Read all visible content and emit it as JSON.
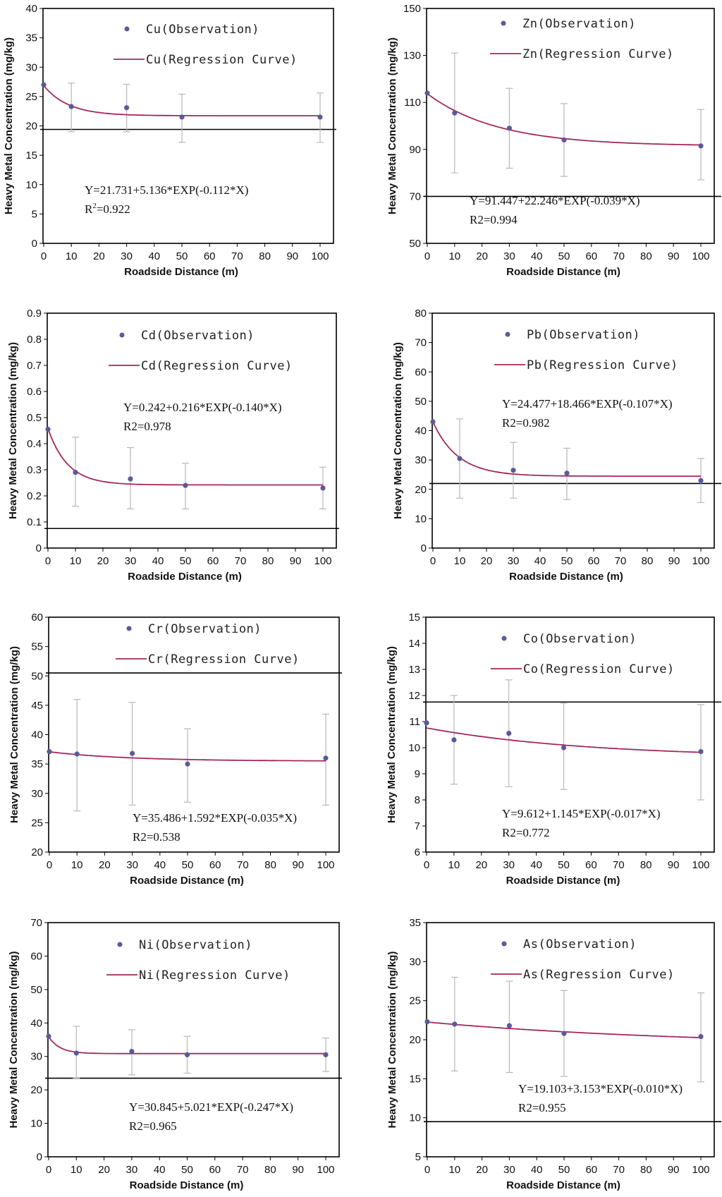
{
  "figure": {
    "x_label": "Roadside Distance (m)",
    "y_label": "Heavy Metal Concentration (mg/kg)"
  },
  "colors": {
    "point": "#5a5a9a",
    "curve": "#a4285a",
    "error_bar": "#b8b8b8",
    "reference_line": "#000000",
    "frame": "#000000"
  },
  "chart_data": [
    {
      "type": "scatter",
      "title": "Cu",
      "element": "Cu",
      "legend_observation": "Cu(Observation)",
      "legend_curve": "Cu(Regression Curve)",
      "xlabel": "Roadside Distance (m)",
      "ylabel": "Heavy Metal Concentration (mg/kg)",
      "xlim": [
        0,
        100
      ],
      "x_ticks": [
        0,
        10,
        20,
        30,
        40,
        50,
        60,
        70,
        80,
        90,
        100
      ],
      "ylim": [
        0,
        40
      ],
      "y_ticks": [
        0,
        5,
        10,
        15,
        20,
        25,
        30,
        35,
        40
      ],
      "x": [
        0,
        10,
        30,
        50,
        100
      ],
      "y": [
        27.0,
        23.3,
        23.1,
        21.5,
        21.5
      ],
      "error_low": [
        27.0,
        19.0,
        19.0,
        17.2,
        17.2
      ],
      "error_high": [
        27.0,
        27.3,
        27.1,
        25.4,
        25.6
      ],
      "regression": {
        "a": 21.731,
        "b": 5.136,
        "k": 0.112
      },
      "reference_line": 19.4,
      "equation": "Y=21.731+5.136*EXP(-0.112*X)",
      "r2_prefix": "R",
      "r2_sup": "2",
      "r2_value": "=0.922"
    },
    {
      "type": "scatter",
      "title": "Zn",
      "element": "Zn",
      "legend_observation": "Zn(Observation)",
      "legend_curve": "Zn(Regression Curve)",
      "xlabel": "Roadside Distance (m)",
      "ylabel": "Heavy Metal Concentration (mg/kg)",
      "xlim": [
        0,
        100
      ],
      "x_ticks": [
        0,
        10,
        20,
        30,
        40,
        50,
        60,
        70,
        80,
        90,
        100
      ],
      "ylim": [
        50,
        150
      ],
      "y_ticks": [
        50,
        70,
        90,
        110,
        130,
        150
      ],
      "x": [
        0,
        10,
        30,
        50,
        100
      ],
      "y": [
        114,
        105.5,
        99,
        94,
        91.5
      ],
      "error_low": [
        114,
        80,
        82,
        78.5,
        77
      ],
      "error_high": [
        114,
        131,
        116,
        109.5,
        107
      ],
      "regression": {
        "a": 91.447,
        "b": 22.246,
        "k": 0.039
      },
      "reference_line": 70,
      "equation": "Y=91.447+22.246*EXP(-0.039*X)",
      "r2_prefix": "R2",
      "r2_sup": "",
      "r2_value": "=0.994"
    },
    {
      "type": "scatter",
      "title": "Cd",
      "element": "Cd",
      "legend_observation": "Cd(Observation)",
      "legend_curve": "Cd(Regression Curve)",
      "xlabel": "Roadside Distance (m)",
      "ylabel": "Heavy Metal Concentration (mg/kg)",
      "xlim": [
        0,
        100
      ],
      "x_ticks": [
        0,
        10,
        20,
        30,
        40,
        50,
        60,
        70,
        80,
        90,
        100
      ],
      "ylim": [
        0,
        0.9
      ],
      "y_ticks": [
        0,
        0.1,
        0.2,
        0.3,
        0.4,
        0.5,
        0.6,
        0.7,
        0.8,
        0.9
      ],
      "x": [
        0,
        10,
        30,
        50,
        100
      ],
      "y": [
        0.455,
        0.29,
        0.265,
        0.24,
        0.23
      ],
      "error_low": [
        0.455,
        0.16,
        0.15,
        0.15,
        0.15
      ],
      "error_high": [
        0.455,
        0.425,
        0.385,
        0.325,
        0.31
      ],
      "regression": {
        "a": 0.242,
        "b": 0.216,
        "k": 0.14
      },
      "reference_line": 0.075,
      "equation": "Y=0.242+0.216*EXP(-0.140*X)",
      "r2_prefix": "R2",
      "r2_sup": "",
      "r2_value": "=0.978"
    },
    {
      "type": "scatter",
      "title": "Pb",
      "element": "Pb",
      "legend_observation": "Pb(Observation)",
      "legend_curve": "Pb(Regression Curve)",
      "xlabel": "Roadside Distance (m)",
      "ylabel": "Heavy Metal Concentration (mg/kg)",
      "xlim": [
        0,
        100
      ],
      "x_ticks": [
        0,
        10,
        20,
        30,
        40,
        50,
        60,
        70,
        80,
        90,
        100
      ],
      "ylim": [
        0,
        80
      ],
      "y_ticks": [
        0,
        10,
        20,
        30,
        40,
        50,
        60,
        70,
        80
      ],
      "x": [
        0,
        10,
        30,
        50,
        100
      ],
      "y": [
        43,
        30.5,
        26.5,
        25.5,
        23
      ],
      "error_low": [
        43,
        17,
        17,
        16.5,
        15.5
      ],
      "error_high": [
        43,
        44,
        36,
        34,
        30.5
      ],
      "regression": {
        "a": 24.477,
        "b": 18.466,
        "k": 0.107
      },
      "reference_line": 22,
      "equation": "Y=24.477+18.466*EXP(-0.107*X)",
      "r2_prefix": "R2",
      "r2_sup": "",
      "r2_value": "=0.982"
    },
    {
      "type": "scatter",
      "title": "Cr",
      "element": "Cr",
      "legend_observation": "Cr(Observation)",
      "legend_curve": "Cr(Regression Curve)",
      "xlabel": "Roadside Distance (m)",
      "ylabel": "Heavy Metal Concentration (mg/kg)",
      "xlim": [
        0,
        100
      ],
      "x_ticks": [
        0,
        10,
        20,
        30,
        40,
        50,
        60,
        70,
        80,
        90,
        100
      ],
      "ylim": [
        20,
        60
      ],
      "y_ticks": [
        20,
        25,
        30,
        35,
        40,
        45,
        50,
        55,
        60
      ],
      "x": [
        0,
        10,
        30,
        50,
        100
      ],
      "y": [
        37.1,
        36.7,
        36.8,
        35.0,
        36.0
      ],
      "error_low": [
        37.1,
        27,
        28,
        28.5,
        28
      ],
      "error_high": [
        37.1,
        46,
        45.5,
        41,
        43.5
      ],
      "regression": {
        "a": 35.486,
        "b": 1.592,
        "k": 0.035
      },
      "reference_line": 50.5,
      "equation": "Y=35.486+1.592*EXP(-0.035*X)",
      "r2_prefix": "R2",
      "r2_sup": "",
      "r2_value": "=0.538"
    },
    {
      "type": "scatter",
      "title": "Co",
      "element": "Co",
      "legend_observation": "Co(Observation)",
      "legend_curve": "Co(Regression Curve)",
      "xlabel": "Roadside Distance (m)",
      "ylabel": "Heavy Metal Concentration (mg/kg)",
      "xlim": [
        0,
        100
      ],
      "x_ticks": [
        0,
        10,
        20,
        30,
        40,
        50,
        60,
        70,
        80,
        90,
        100
      ],
      "ylim": [
        6,
        15
      ],
      "y_ticks": [
        6,
        7,
        8,
        9,
        10,
        11,
        12,
        13,
        14,
        15
      ],
      "x": [
        0,
        10,
        30,
        50,
        100
      ],
      "y": [
        10.95,
        10.3,
        10.55,
        10.0,
        9.85
      ],
      "error_low": [
        10.95,
        8.6,
        8.5,
        8.4,
        8.0
      ],
      "error_high": [
        10.95,
        12.0,
        12.6,
        11.7,
        11.65
      ],
      "regression": {
        "a": 9.612,
        "b": 1.145,
        "k": 0.017
      },
      "reference_line": 11.75,
      "equation": "Y=9.612+1.145*EXP(-0.017*X)",
      "r2_prefix": "R2",
      "r2_sup": "",
      "r2_value": "=0.772"
    },
    {
      "type": "scatter",
      "title": "Ni",
      "element": "Ni",
      "legend_observation": "Ni(Observation)",
      "legend_curve": "Ni(Regression Curve)",
      "xlabel": "Roadside Distance (m)",
      "ylabel": "Heavy Metal Concentration (mg/kg)",
      "xlim": [
        0,
        100
      ],
      "x_ticks": [
        0,
        10,
        20,
        30,
        40,
        50,
        60,
        70,
        80,
        90,
        100
      ],
      "ylim": [
        0,
        70
      ],
      "y_ticks": [
        0,
        10,
        20,
        30,
        40,
        50,
        60,
        70
      ],
      "x": [
        0,
        10,
        30,
        50,
        100
      ],
      "y": [
        36,
        31,
        31.5,
        30.5,
        30.5
      ],
      "error_low": [
        36,
        23.5,
        24.5,
        25,
        25.5
      ],
      "error_high": [
        36,
        39,
        38,
        36,
        35.5
      ],
      "regression": {
        "a": 30.845,
        "b": 5.021,
        "k": 0.247
      },
      "reference_line": 23.5,
      "equation": "Y=30.845+5.021*EXP(-0.247*X)",
      "r2_prefix": "R2",
      "r2_sup": "",
      "r2_value": "=0.965"
    },
    {
      "type": "scatter",
      "title": "As",
      "element": "As",
      "legend_observation": "As(Observation)",
      "legend_curve": "As(Regression Curve)",
      "xlabel": "Roadside Distance (m)",
      "ylabel": "Heavy Metal Concentration (mg/kg)",
      "xlim": [
        0,
        100
      ],
      "x_ticks": [
        0,
        10,
        20,
        30,
        40,
        50,
        60,
        70,
        80,
        90,
        100
      ],
      "ylim": [
        5,
        35
      ],
      "y_ticks": [
        5,
        10,
        15,
        20,
        25,
        30,
        35
      ],
      "x": [
        0,
        10,
        30,
        50,
        100
      ],
      "y": [
        22.3,
        22.0,
        21.8,
        20.8,
        20.4
      ],
      "error_low": [
        22.3,
        16,
        15.8,
        15.3,
        14.6
      ],
      "error_high": [
        22.3,
        28,
        27.5,
        26.3,
        26
      ],
      "regression": {
        "a": 19.103,
        "b": 3.153,
        "k": 0.01
      },
      "reference_line": 9.5,
      "equation": "Y=19.103+3.153*EXP(-0.010*X)",
      "r2_prefix": "R2",
      "r2_sup": "",
      "r2_value": "=0.955"
    }
  ]
}
